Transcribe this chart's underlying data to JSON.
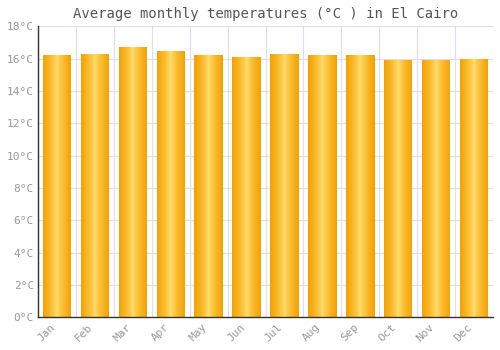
{
  "title": "Average monthly temperatures (°C ) in El Cairo",
  "months": [
    "Jan",
    "Feb",
    "Mar",
    "Apr",
    "May",
    "Jun",
    "Jul",
    "Aug",
    "Sep",
    "Oct",
    "Nov",
    "Dec"
  ],
  "values": [
    16.2,
    16.3,
    16.7,
    16.5,
    16.2,
    16.1,
    16.3,
    16.2,
    16.2,
    15.9,
    15.9,
    16.0
  ],
  "ylim": [
    0,
    18
  ],
  "yticks": [
    0,
    2,
    4,
    6,
    8,
    10,
    12,
    14,
    16,
    18
  ],
  "bar_color_center": "#FFE070",
  "bar_color_edge": "#F5A000",
  "background_color": "#FFFFFF",
  "plot_bg_color": "#FFFFFF",
  "grid_color": "#DDDDEE",
  "title_fontsize": 10,
  "tick_fontsize": 8,
  "bar_width": 0.75
}
